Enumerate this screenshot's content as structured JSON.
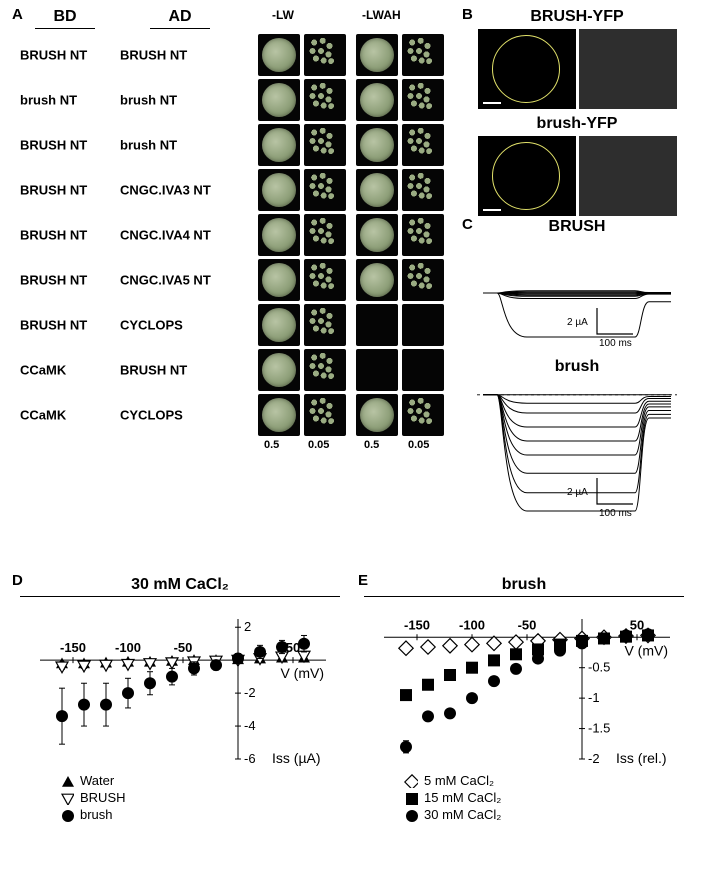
{
  "labels": {
    "A": "A",
    "B": "B",
    "C": "C",
    "D": "D",
    "E": "E"
  },
  "panelA": {
    "bd": "BD",
    "ad": "AD",
    "lw": "-LW",
    "lwah": "-LWAH",
    "d05": "0.5",
    "d005": "0.05",
    "rows": [
      {
        "bd": "BRUSH NT",
        "ad": "BRUSH NT",
        "lw": [
          1,
          1
        ],
        "lwah": [
          1,
          1
        ]
      },
      {
        "bd": "brush NT",
        "ad": "brush NT",
        "lw": [
          1,
          1
        ],
        "lwah": [
          1,
          1
        ]
      },
      {
        "bd": "BRUSH NT",
        "ad": "brush NT",
        "lw": [
          1,
          1
        ],
        "lwah": [
          1,
          1
        ]
      },
      {
        "bd": "BRUSH NT",
        "ad": "CNGC.IVA3 NT",
        "lw": [
          1,
          1
        ],
        "lwah": [
          1,
          1
        ]
      },
      {
        "bd": "BRUSH NT",
        "ad": "CNGC.IVA4 NT",
        "lw": [
          1,
          1
        ],
        "lwah": [
          1,
          1
        ]
      },
      {
        "bd": "BRUSH NT",
        "ad": "CNGC.IVA5 NT",
        "lw": [
          1,
          1
        ],
        "lwah": [
          1,
          1
        ]
      },
      {
        "bd": "BRUSH NT",
        "ad": "CYCLOPS",
        "lw": [
          1,
          1
        ],
        "lwah": [
          0,
          0
        ]
      },
      {
        "bd": "CCaMK",
        "ad": "BRUSH NT",
        "lw": [
          1,
          1
        ],
        "lwah": [
          0,
          0
        ]
      },
      {
        "bd": "CCaMK",
        "ad": "CYCLOPS",
        "lw": [
          1,
          1
        ],
        "lwah": [
          1,
          1
        ]
      }
    ],
    "font_size": 13
  },
  "panelB": {
    "t1": "BRUSH-YFP",
    "t2": "brush-YFP",
    "circle_color": "#e2e26a",
    "bg_black": "#000000",
    "bg_grey": "#2e2e2e",
    "scalebar_color": "#ffffff"
  },
  "panelC": {
    "t1": "BRUSH",
    "t2": "brush",
    "scale_v": "2 µA",
    "scale_h": "100 ms",
    "plot1": {
      "height": 110,
      "traces_y": [
        0.48,
        0.49,
        0.5,
        0.51,
        0.52,
        0.53,
        0.55,
        0.9
      ],
      "trace_color": "#000",
      "baseline": 0.5
    },
    "plot2": {
      "height": 140,
      "traces_y": [
        0.12,
        0.18,
        0.25,
        0.35,
        0.45,
        0.55,
        0.68,
        0.82,
        0.95
      ],
      "trace_color": "#000",
      "baseline": 0.12
    }
  },
  "panelD": {
    "title": "30 mM CaCl₂",
    "x_ticks": [
      -150,
      -100,
      -50,
      50
    ],
    "y_ticks": [
      2,
      -2,
      -4,
      -6
    ],
    "xlabel": "V (mV)",
    "ylabel": "Iss (µA)",
    "xlim": [
      -180,
      80
    ],
    "ylim": [
      -6,
      2.5
    ],
    "series": [
      {
        "name": "Water",
        "marker": "tri_up_filled",
        "color": "#000000",
        "x": [
          -160,
          -140,
          -120,
          -100,
          -80,
          -60,
          -40,
          -20,
          0,
          20,
          40,
          60
        ],
        "y": [
          -0.2,
          -0.2,
          -0.15,
          -0.1,
          -0.1,
          -0.05,
          0,
          0,
          0.05,
          0.1,
          0.15,
          0.15
        ],
        "err": [
          0.1,
          0.1,
          0.1,
          0.1,
          0.1,
          0.1,
          0.1,
          0.1,
          0.1,
          0.1,
          0.1,
          0.1
        ]
      },
      {
        "name": "BRUSH",
        "marker": "tri_down_open",
        "color": "#000000",
        "x": [
          -160,
          -140,
          -120,
          -100,
          -80,
          -60,
          -40,
          -20,
          0,
          20,
          40,
          60
        ],
        "y": [
          -0.4,
          -0.35,
          -0.3,
          -0.25,
          -0.2,
          -0.15,
          -0.1,
          -0.05,
          0,
          0.1,
          0.2,
          0.25
        ],
        "err": [
          0.15,
          0.15,
          0.12,
          0.12,
          0.1,
          0.1,
          0.1,
          0.1,
          0.1,
          0.1,
          0.1,
          0.1
        ]
      },
      {
        "name": "brush",
        "marker": "circle_filled",
        "color": "#000000",
        "x": [
          -160,
          -140,
          -120,
          -100,
          -80,
          -60,
          -40,
          -20,
          0,
          20,
          40,
          60
        ],
        "y": [
          -3.4,
          -2.7,
          -2.7,
          -2.0,
          -1.4,
          -1.0,
          -0.5,
          -0.3,
          0.1,
          0.5,
          0.8,
          1.0
        ],
        "err": [
          1.7,
          1.3,
          1.3,
          0.9,
          0.7,
          0.5,
          0.4,
          0.3,
          0.3,
          0.4,
          0.4,
          0.5
        ]
      }
    ],
    "legend": [
      {
        "marker": "tri_up_filled",
        "label": "Water"
      },
      {
        "marker": "tri_down_open",
        "label": "BRUSH"
      },
      {
        "marker": "circle_filled",
        "label": "brush"
      }
    ]
  },
  "panelE": {
    "title": "brush",
    "x_ticks": [
      -150,
      -100,
      -50,
      50
    ],
    "y_ticks": [
      -0.5,
      -1.0,
      -1.5,
      -2.0
    ],
    "xlabel": "V (mV)",
    "ylabel": "Iss (rel.)",
    "xlim": [
      -180,
      80
    ],
    "ylim": [
      -2.0,
      0.3
    ],
    "series": [
      {
        "name": "5 mM CaCl₂",
        "marker": "diamond_open",
        "color": "#000000",
        "x": [
          -160,
          -140,
          -120,
          -100,
          -80,
          -60,
          -40,
          -20,
          0,
          20,
          40,
          60
        ],
        "y": [
          -0.18,
          -0.16,
          -0.14,
          -0.12,
          -0.1,
          -0.08,
          -0.06,
          -0.04,
          -0.02,
          0,
          0.02,
          0.03
        ],
        "err": [
          0.03,
          0.03,
          0.03,
          0.03,
          0.02,
          0.02,
          0.02,
          0.02,
          0.02,
          0.02,
          0.02,
          0.02
        ]
      },
      {
        "name": "15 mM CaCl₂",
        "marker": "square_filled",
        "color": "#000000",
        "x": [
          -160,
          -140,
          -120,
          -100,
          -80,
          -60,
          -40,
          -20,
          0,
          20,
          40,
          60
        ],
        "y": [
          -0.95,
          -0.78,
          -0.62,
          -0.5,
          -0.38,
          -0.28,
          -0.2,
          -0.12,
          -0.06,
          -0.02,
          0.01,
          0.03
        ],
        "err": [
          0.06,
          0.05,
          0.05,
          0.04,
          0.04,
          0.03,
          0.03,
          0.02,
          0.02,
          0.02,
          0.02,
          0.02
        ]
      },
      {
        "name": "30 mM CaCl₂",
        "marker": "circle_filled",
        "color": "#000000",
        "x": [
          -160,
          -140,
          -120,
          -100,
          -80,
          -60,
          -40,
          -20,
          0,
          20,
          40,
          60
        ],
        "y": [
          -1.8,
          -1.3,
          -1.25,
          -1.0,
          -0.72,
          -0.52,
          -0.35,
          -0.22,
          -0.1,
          -0.02,
          0.03,
          0.05
        ],
        "err": [
          0.1,
          0.07,
          0.06,
          0.05,
          0.04,
          0.04,
          0.03,
          0.03,
          0.02,
          0.02,
          0.02,
          0.02
        ]
      }
    ],
    "legend": [
      {
        "marker": "diamond_open",
        "label": "5 mM CaCl₂"
      },
      {
        "marker": "square_filled",
        "label": "15 mM CaCl₂"
      },
      {
        "marker": "circle_filled",
        "label": "30 mM CaCl₂"
      }
    ]
  },
  "style": {
    "font_label": 15,
    "font_tick": 13,
    "axis_color": "#000000",
    "marker_size": 6
  }
}
